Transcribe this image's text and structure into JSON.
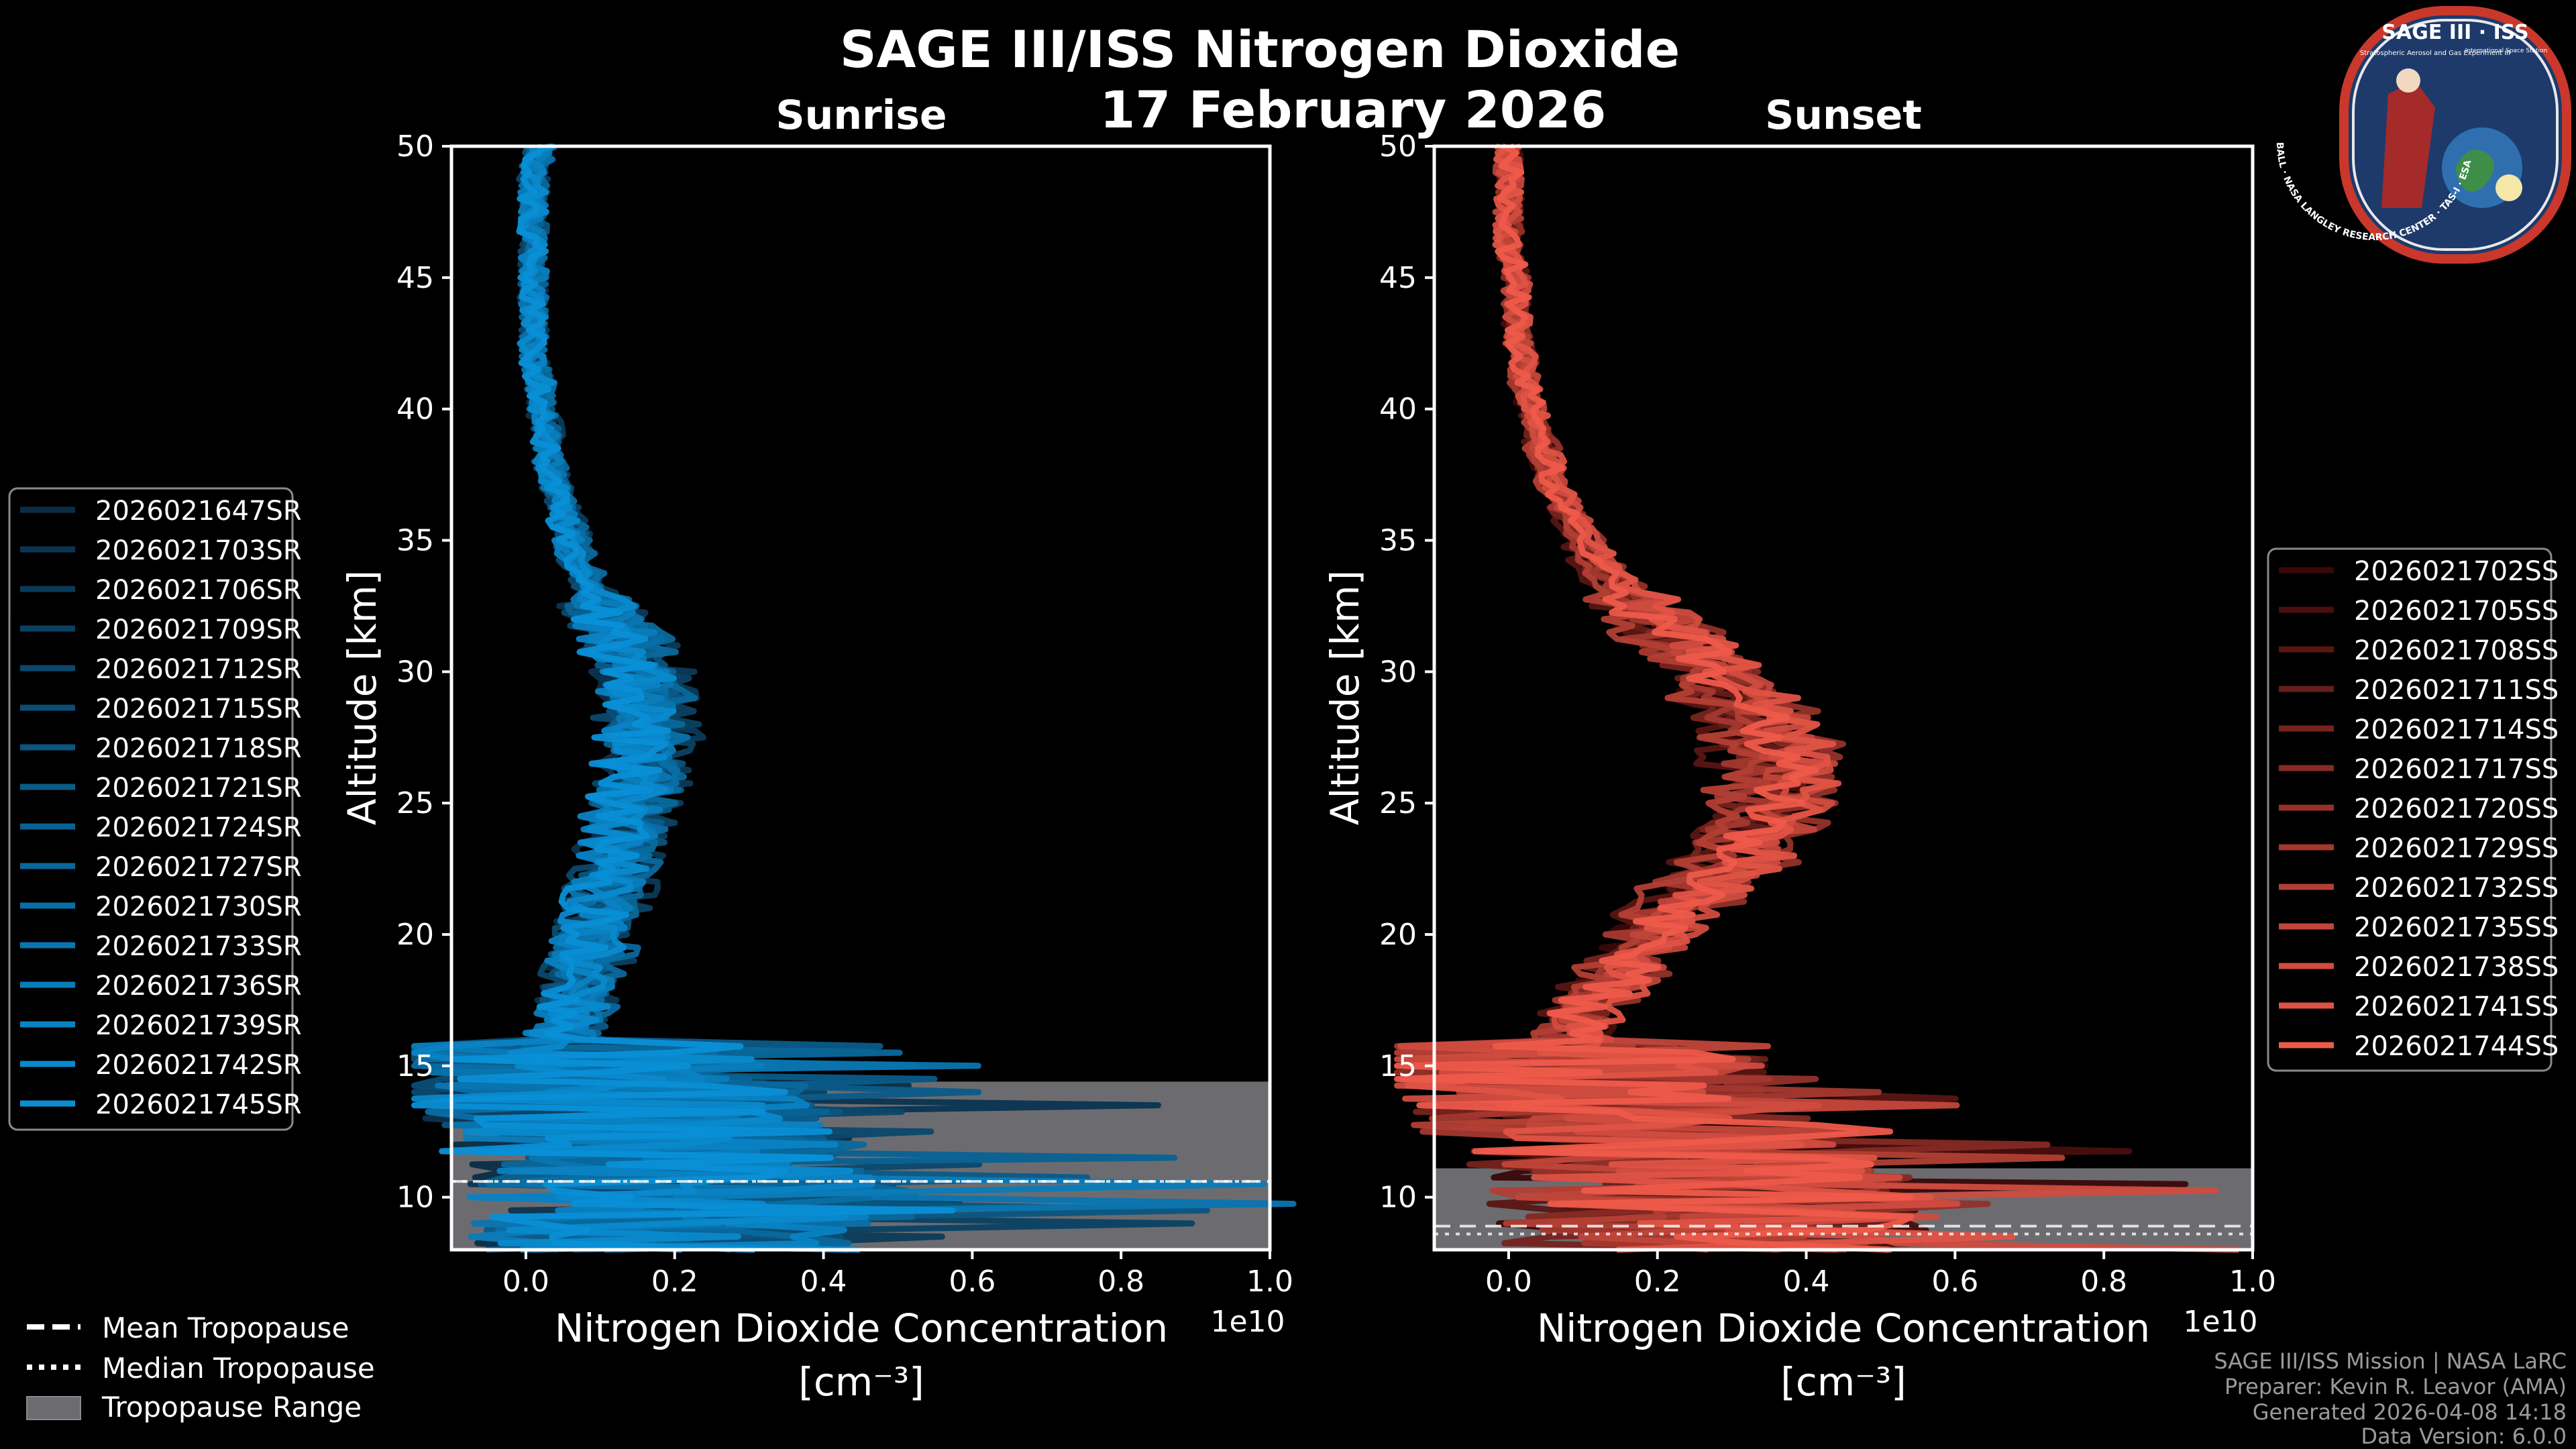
{
  "page": {
    "title": "SAGE III/ISS Nitrogen Dioxide",
    "date": "17 February 2026",
    "logo": {
      "title": "SAGE III · ISS",
      "subtitle": "Stratospheric Aerosol and Gas Experiment III",
      "ring_text": "BALL · NASA LANGLEY RESEARCH CENTER · TAS-I · ESA",
      "side_text": "International Space Station"
    },
    "footer": {
      "line1": "SAGE III/ISS Mission | NASA LaRC",
      "line2": "Preparer: Kevin R. Leavor (AMA)",
      "line3": "Generated 2026-04-08 14:18",
      "line4": "Data Version: 6.0.0"
    },
    "tropopause_legend": [
      {
        "label": "Mean Tropopause",
        "style": "dashed"
      },
      {
        "label": "Median Tropopause",
        "style": "dotted"
      },
      {
        "label": "Tropopause Range",
        "style": "patch"
      }
    ],
    "colors": {
      "background": "#000000",
      "foreground": "#ffffff",
      "sunrise_light": "#0a8fd6",
      "sunrise_dark": "#0b2e46",
      "sunset_light": "#ee5a4a",
      "sunset_dark": "#3a0808",
      "tropopause_patch": "#6c6c70"
    }
  },
  "chart_data": [
    {
      "type": "line",
      "panel": "sunrise",
      "title": "Sunrise",
      "xlabel": "Nitrogen Dioxide Concentration",
      "xunit": "[cm⁻³]",
      "x_multiplier": "1e10",
      "ylabel": "Altitude [km]",
      "xlim": [
        -0.1,
        1.0
      ],
      "ylim": [
        8,
        50
      ],
      "xticks": [
        0.0,
        0.2,
        0.4,
        0.6,
        0.8,
        1.0
      ],
      "xtick_labels": [
        "0.0",
        "0.2",
        "0.4",
        "0.6",
        "0.8",
        "1.0"
      ],
      "yticks": [
        10,
        15,
        20,
        25,
        30,
        35,
        40,
        45,
        50
      ],
      "ytick_labels": [
        "10",
        "15",
        "20",
        "25",
        "30",
        "35",
        "40",
        "45",
        "50"
      ],
      "grid": false,
      "legend_position": "left outside",
      "tropopause": {
        "min": 8,
        "max": 14.4,
        "mean": 10.6,
        "median": 10.6
      },
      "profile_template": {
        "altitude_km": [
          8,
          9,
          10,
          11,
          12,
          13,
          14,
          15,
          16,
          17,
          18,
          19,
          20,
          21,
          22,
          23,
          24,
          25,
          26,
          27,
          28,
          29,
          30,
          31,
          32,
          33,
          34,
          35,
          36,
          37,
          38,
          39,
          40,
          41,
          42,
          43,
          44,
          45,
          46,
          47,
          48,
          49,
          50
        ],
        "value_1e10": [
          0.18,
          0.2,
          0.22,
          0.2,
          0.17,
          0.14,
          0.1,
          0.06,
          0.05,
          0.06,
          0.07,
          0.08,
          0.09,
          0.1,
          0.11,
          0.12,
          0.13,
          0.14,
          0.15,
          0.16,
          0.16,
          0.16,
          0.15,
          0.13,
          0.11,
          0.09,
          0.07,
          0.06,
          0.05,
          0.04,
          0.03,
          0.03,
          0.02,
          0.02,
          0.01,
          0.01,
          0.01,
          0.01,
          0.01,
          0.01,
          0.01,
          0.01,
          0.02
        ]
      },
      "series": [
        {
          "name": "2026021647SR"
        },
        {
          "name": "2026021703SR"
        },
        {
          "name": "2026021706SR"
        },
        {
          "name": "2026021709SR"
        },
        {
          "name": "2026021712SR"
        },
        {
          "name": "2026021715SR"
        },
        {
          "name": "2026021718SR"
        },
        {
          "name": "2026021721SR"
        },
        {
          "name": "2026021724SR"
        },
        {
          "name": "2026021727SR"
        },
        {
          "name": "2026021730SR"
        },
        {
          "name": "2026021733SR"
        },
        {
          "name": "2026021736SR"
        },
        {
          "name": "2026021739SR"
        },
        {
          "name": "2026021742SR"
        },
        {
          "name": "2026021745SR"
        }
      ]
    },
    {
      "type": "line",
      "panel": "sunset",
      "title": "Sunset",
      "xlabel": "Nitrogen Dioxide Concentration",
      "xunit": "[cm⁻³]",
      "x_multiplier": "1e10",
      "ylabel": "Altitude [km]",
      "xlim": [
        -0.1,
        1.0
      ],
      "ylim": [
        8,
        50
      ],
      "xticks": [
        0.0,
        0.2,
        0.4,
        0.6,
        0.8,
        1.0
      ],
      "xtick_labels": [
        "0.0",
        "0.2",
        "0.4",
        "0.6",
        "0.8",
        "1.0"
      ],
      "yticks": [
        10,
        15,
        20,
        25,
        30,
        35,
        40,
        45,
        50
      ],
      "ytick_labels": [
        "10",
        "15",
        "20",
        "25",
        "30",
        "35",
        "40",
        "45",
        "50"
      ],
      "grid": false,
      "legend_position": "right outside",
      "tropopause": {
        "min": 8,
        "max": 11.1,
        "mean": 8.9,
        "median": 8.6
      },
      "profile_template": {
        "altitude_km": [
          8,
          9,
          10,
          11,
          12,
          13,
          14,
          15,
          16,
          17,
          18,
          19,
          20,
          21,
          22,
          23,
          24,
          25,
          26,
          27,
          28,
          29,
          30,
          31,
          32,
          33,
          34,
          35,
          36,
          37,
          38,
          39,
          40,
          41,
          42,
          43,
          44,
          45,
          46,
          47,
          48,
          49,
          50
        ],
        "value_1e10": [
          0.3,
          0.28,
          0.26,
          0.24,
          0.2,
          0.15,
          0.11,
          0.08,
          0.08,
          0.1,
          0.13,
          0.16,
          0.19,
          0.22,
          0.26,
          0.3,
          0.33,
          0.35,
          0.36,
          0.35,
          0.33,
          0.3,
          0.27,
          0.23,
          0.19,
          0.15,
          0.12,
          0.1,
          0.08,
          0.06,
          0.05,
          0.04,
          0.03,
          0.02,
          0.02,
          0.01,
          0.01,
          0.01,
          0.0,
          0.0,
          0.0,
          0.0,
          0.0
        ]
      },
      "series": [
        {
          "name": "2026021702SS"
        },
        {
          "name": "2026021705SS"
        },
        {
          "name": "2026021708SS"
        },
        {
          "name": "2026021711SS"
        },
        {
          "name": "2026021714SS"
        },
        {
          "name": "2026021717SS"
        },
        {
          "name": "2026021720SS"
        },
        {
          "name": "2026021729SS"
        },
        {
          "name": "2026021732SS"
        },
        {
          "name": "2026021735SS"
        },
        {
          "name": "2026021738SS"
        },
        {
          "name": "2026021741SS"
        },
        {
          "name": "2026021744SS"
        }
      ]
    }
  ]
}
